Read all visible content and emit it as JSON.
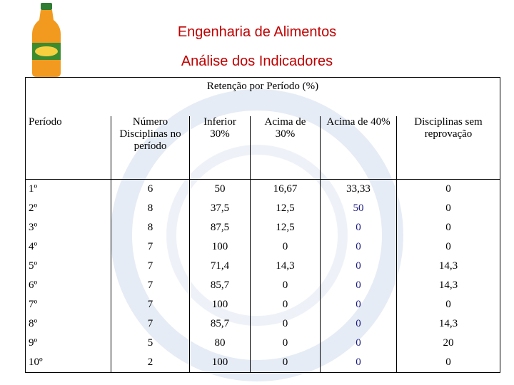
{
  "header": {
    "title": "Engenharia de Alimentos",
    "subtitle": "Análise dos Indicadores"
  },
  "table": {
    "caption": "Retenção por Período (%)",
    "columns": [
      "Período",
      "Número Disciplinas no período",
      "Inferior 30%",
      "Acima de 30%",
      "Acima de 40%",
      "Disciplinas sem reprovação"
    ],
    "rows": [
      [
        "1º",
        "6",
        "50",
        "16,67",
        "33,33",
        "0"
      ],
      [
        "2º",
        "8",
        "37,5",
        "12,5",
        "50",
        "0"
      ],
      [
        "3º",
        "8",
        "87,5",
        "12,5",
        "0",
        "0"
      ],
      [
        "4º",
        "7",
        "100",
        "0",
        "0",
        "0"
      ],
      [
        "5º",
        "7",
        "71,4",
        "14,3",
        "0",
        "14,3"
      ],
      [
        "6º",
        "7",
        "85,7",
        "0",
        "0",
        "14,3"
      ],
      [
        "7º",
        "7",
        "100",
        "0",
        "0",
        "0"
      ],
      [
        "8º",
        "7",
        "85,7",
        "0",
        "0",
        "14,3"
      ],
      [
        "9º",
        "5",
        "80",
        "0",
        "0",
        "20"
      ],
      [
        "10º",
        "2",
        "100",
        "0",
        "0",
        "0"
      ]
    ]
  }
}
